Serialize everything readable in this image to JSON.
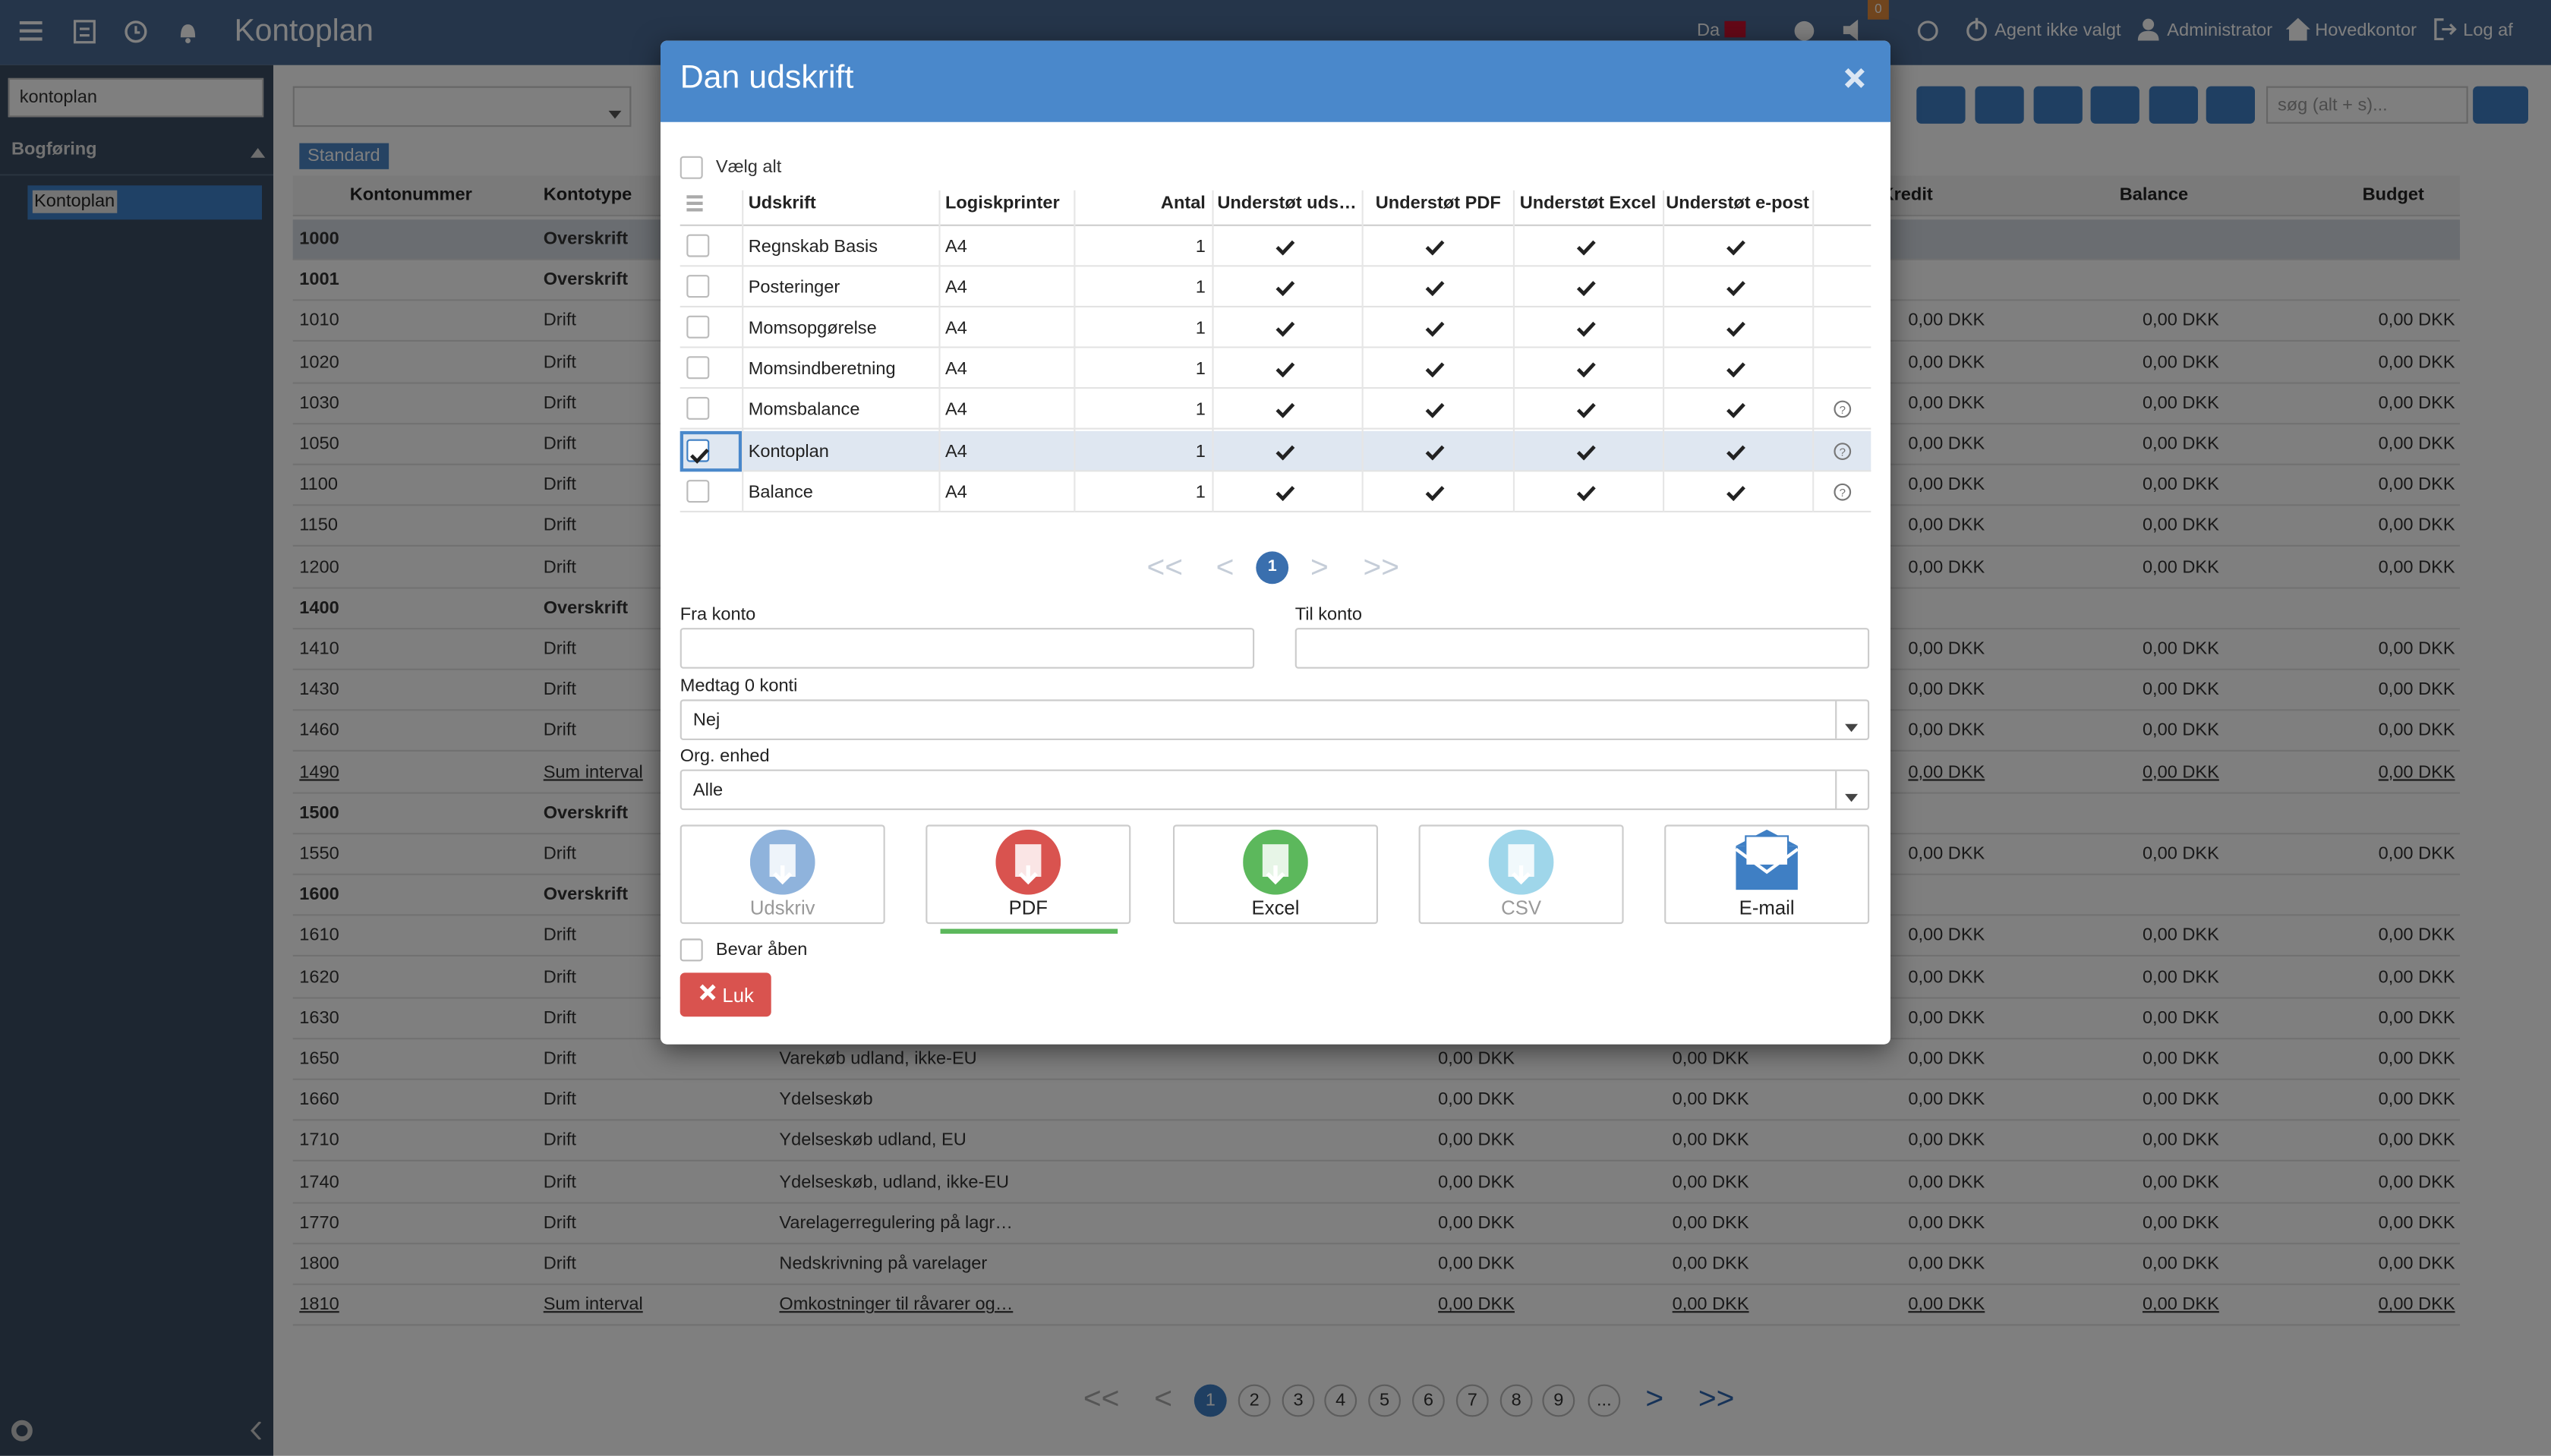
{
  "topbar": {
    "title": "Kontoplan",
    "language": "Da",
    "notification_count": "0",
    "agent": "Agent ikke valgt",
    "user": "Administrator",
    "company": "Hovedkontor",
    "logout": "Log af"
  },
  "sidebar": {
    "search": "kontoplan",
    "section": "Bogføring",
    "item": "Kontoplan"
  },
  "toolbar": {
    "view": "Standard",
    "search_placeholder": "søg (alt + s)..."
  },
  "grid": {
    "columns": [
      "Kontonummer",
      "Kontotype",
      "Kredit",
      "Balance",
      "Budget"
    ],
    "rows": [
      {
        "number": "1000",
        "type": "Overskrift",
        "kind": "heading",
        "selected": true
      },
      {
        "number": "1001",
        "type": "Overskrift",
        "kind": "heading"
      },
      {
        "number": "1010",
        "type": "Drift",
        "amounts": [
          "0,00 DKK",
          "0,00 DKK",
          "0,00 DKK"
        ]
      },
      {
        "number": "1020",
        "type": "Drift",
        "amounts": [
          "0,00 DKK",
          "0,00 DKK",
          "0,00 DKK"
        ]
      },
      {
        "number": "1030",
        "type": "Drift",
        "amounts": [
          "0,00 DKK",
          "0,00 DKK",
          "0,00 DKK"
        ]
      },
      {
        "number": "1050",
        "type": "Drift",
        "amounts": [
          "0,00 DKK",
          "0,00 DKK",
          "0,00 DKK"
        ]
      },
      {
        "number": "1100",
        "type": "Drift",
        "amounts": [
          "0,00 DKK",
          "0,00 DKK",
          "0,00 DKK"
        ]
      },
      {
        "number": "1150",
        "type": "Drift",
        "amounts": [
          "0,00 DKK",
          "0,00 DKK",
          "0,00 DKK"
        ]
      },
      {
        "number": "1200",
        "type": "Drift",
        "amounts": [
          "0,00 DKK",
          "0,00 DKK",
          "0,00 DKK"
        ]
      },
      {
        "number": "1400",
        "type": "Overskrift",
        "kind": "heading"
      },
      {
        "number": "1410",
        "type": "Drift",
        "amounts": [
          "0,00 DKK",
          "0,00 DKK",
          "0,00 DKK"
        ]
      },
      {
        "number": "1430",
        "type": "Drift",
        "amounts": [
          "0,00 DKK",
          "0,00 DKK",
          "0,00 DKK"
        ]
      },
      {
        "number": "1460",
        "type": "Drift",
        "amounts": [
          "0,00 DKK",
          "0,00 DKK",
          "0,00 DKK"
        ]
      },
      {
        "number": "1490",
        "type": "Sum interval",
        "kind": "link",
        "amounts": [
          "0,00 DKK",
          "0,00 DKK",
          "0,00 DKK"
        ]
      },
      {
        "number": "1500",
        "type": "Overskrift",
        "kind": "heading"
      },
      {
        "number": "1550",
        "type": "Drift",
        "amounts": [
          "0,00 DKK",
          "0,00 DKK",
          "0,00 DKK"
        ]
      },
      {
        "number": "1600",
        "type": "Overskrift",
        "kind": "heading"
      },
      {
        "number": "1610",
        "type": "Drift",
        "amounts": [
          "0,00 DKK",
          "0,00 DKK",
          "0,00 DKK"
        ]
      },
      {
        "number": "1620",
        "type": "Drift",
        "amounts": [
          "0,00 DKK",
          "0,00 DKK",
          "0,00 DKK"
        ]
      },
      {
        "number": "1630",
        "type": "Drift",
        "amounts": [
          "0,00 DKK",
          "0,00 DKK",
          "0,00 DKK"
        ]
      },
      {
        "number": "1650",
        "type": "Drift",
        "name": "Varekøb udland, ikke-EU",
        "amounts": [
          "0,00 DKK",
          "0,00 DKK",
          "0,00 DKK",
          "0,00 DKK",
          "0,00 DKK"
        ]
      },
      {
        "number": "1660",
        "type": "Drift",
        "name": "Ydelseskøb",
        "amounts": [
          "0,00 DKK",
          "0,00 DKK",
          "0,00 DKK",
          "0,00 DKK",
          "0,00 DKK"
        ]
      },
      {
        "number": "1710",
        "type": "Drift",
        "name": "Ydelseskøb udland, EU",
        "amounts": [
          "0,00 DKK",
          "0,00 DKK",
          "0,00 DKK",
          "0,00 DKK",
          "0,00 DKK"
        ]
      },
      {
        "number": "1740",
        "type": "Drift",
        "name": "Ydelseskøb, udland, ikke-EU",
        "amounts": [
          "0,00 DKK",
          "0,00 DKK",
          "0,00 DKK",
          "0,00 DKK",
          "0,00 DKK"
        ]
      },
      {
        "number": "1770",
        "type": "Drift",
        "name": "Varelagerregulering på lagr…",
        "amounts": [
          "0,00 DKK",
          "0,00 DKK",
          "0,00 DKK",
          "0,00 DKK",
          "0,00 DKK"
        ]
      },
      {
        "number": "1800",
        "type": "Drift",
        "name": "Nedskrivning på varelager",
        "amounts": [
          "0,00 DKK",
          "0,00 DKK",
          "0,00 DKK",
          "0,00 DKK",
          "0,00 DKK"
        ]
      },
      {
        "number": "1810",
        "type": "Sum interval",
        "kind": "link",
        "name": "Omkostninger til råvarer og…",
        "amounts": [
          "0,00 DKK",
          "0,00 DKK",
          "0,00 DKK",
          "0,00 DKK",
          "0,00 DKK"
        ]
      }
    ],
    "pager": [
      {
        "label": "<<"
      },
      {
        "label": "<"
      },
      {
        "label": "1",
        "active": true
      },
      {
        "label": "2"
      },
      {
        "label": "3"
      },
      {
        "label": "4"
      },
      {
        "label": "5"
      },
      {
        "label": "6"
      },
      {
        "label": "7"
      },
      {
        "label": "8"
      },
      {
        "label": "9"
      },
      {
        "label": "..."
      },
      {
        "label": ">"
      },
      {
        "label": ">>"
      }
    ]
  },
  "dialog": {
    "title": "Dan udskrift",
    "select_all": "Vælg alt",
    "columns": [
      "Udskrift",
      "Logiskprinter",
      "Antal",
      "Understøt uds…",
      "Understøt PDF",
      "Understøt Excel",
      "Understøt e-post"
    ],
    "rows": [
      {
        "name": "Regnskab Basis",
        "printer": "A4",
        "count": 1,
        "supports": [
          true,
          true,
          true,
          true
        ],
        "help": false,
        "checked": false
      },
      {
        "name": "Posteringer",
        "printer": "A4",
        "count": 1,
        "supports": [
          true,
          true,
          true,
          true
        ],
        "help": false,
        "checked": false
      },
      {
        "name": "Momsopgørelse",
        "printer": "A4",
        "count": 1,
        "supports": [
          true,
          true,
          true,
          true
        ],
        "help": false,
        "checked": false
      },
      {
        "name": "Momsindberetning",
        "printer": "A4",
        "count": 1,
        "supports": [
          true,
          true,
          true,
          true
        ],
        "help": false,
        "checked": false
      },
      {
        "name": "Momsbalance",
        "printer": "A4",
        "count": 1,
        "supports": [
          true,
          true,
          true,
          true
        ],
        "help": true,
        "checked": false
      },
      {
        "name": "Kontoplan",
        "printer": "A4",
        "count": 1,
        "supports": [
          true,
          true,
          true,
          true
        ],
        "help": true,
        "checked": true
      },
      {
        "name": "Balance",
        "printer": "A4",
        "count": 1,
        "supports": [
          true,
          true,
          true,
          true
        ],
        "help": true,
        "checked": false
      }
    ],
    "pager": [
      {
        "label": "<<"
      },
      {
        "label": "<"
      },
      {
        "label": "1",
        "active": true
      },
      {
        "label": ">"
      },
      {
        "label": ">>"
      }
    ],
    "from_label": "Fra konto",
    "to_label": "Til konto",
    "zero_label": "Medtag 0 konti",
    "zero_value": "Nej",
    "org_label": "Org. enhed",
    "org_value": "Alle",
    "buttons": [
      {
        "label": "Udskriv",
        "color": "#8fb3dc",
        "enabled": false
      },
      {
        "label": "PDF",
        "color": "#d9534f",
        "enabled": true,
        "selected": true
      },
      {
        "label": "Excel",
        "color": "#5cb85c",
        "enabled": true
      },
      {
        "label": "CSV",
        "color": "#9fd6ea",
        "enabled": false
      },
      {
        "label": "E-mail",
        "color": "#3f7fc4",
        "enabled": true
      }
    ],
    "keep_open": "Bevar åben",
    "close": "Luk"
  }
}
